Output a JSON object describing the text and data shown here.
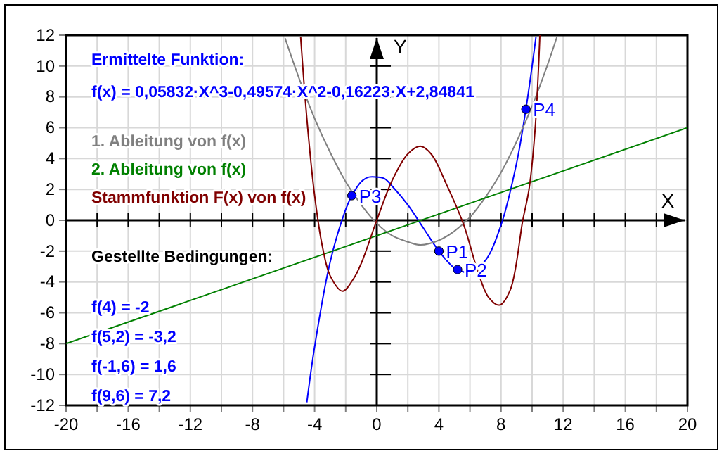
{
  "chart_data": {
    "type": "line",
    "legend_title": "Ermittelte Funktion:",
    "xlabel": "X",
    "ylabel": "Y",
    "xlim": [
      -20,
      20
    ],
    "ylim": [
      -12,
      12
    ],
    "xticks": [
      -20,
      {
        "value": -18,
        "label": null
      },
      -16,
      {
        "value": -14,
        "label": null
      },
      -12,
      {
        "value": -10,
        "label": null
      },
      -8,
      {
        "value": -6,
        "label": null
      },
      -4,
      {
        "value": -2,
        "label": null
      },
      0,
      {
        "value": 2,
        "label": null
      },
      4,
      {
        "value": 6,
        "label": null
      },
      8,
      {
        "value": 10,
        "label": null
      },
      12,
      {
        "value": 14,
        "label": null
      },
      16,
      {
        "value": 18,
        "label": null
      },
      20
    ],
    "yticks": [
      -12,
      -10,
      -8,
      -6,
      -4,
      -2,
      0,
      2,
      4,
      6,
      8,
      10,
      12
    ],
    "grid": true,
    "legend": "top left",
    "marker": "none",
    "line_style": "solid",
    "series": [
      {
        "name": "f(x) = 0,05832·X^3-0,49574·X^2-0,16223·X+2,84841",
        "color": "#0000ff",
        "x": [
          -4.5,
          -4,
          -3,
          -2,
          -1.6,
          -1,
          -0.5,
          0,
          0.5,
          1,
          2,
          3,
          4,
          5,
          5.2,
          6,
          7,
          8,
          9,
          9.6,
          10,
          10.25
        ],
        "values": [
          -11.8,
          -8.2,
          -2.7,
          0.7,
          1.6,
          2.5,
          2.8,
          2.8,
          2.7,
          2.2,
          1,
          -0.5,
          -2,
          -3.1,
          -3.2,
          -3.4,
          -2.6,
          -0.3,
          3.7,
          7.2,
          10,
          11.9
        ]
      },
      {
        "name": "1. Ableitung von f(x)",
        "color": "#808080",
        "x": [
          -5.9,
          -5,
          -4,
          -3,
          -2,
          -1,
          0,
          1,
          2,
          2.83,
          4,
          5,
          6,
          7,
          8,
          9,
          10,
          11,
          11.6
        ],
        "values": [
          11.8,
          9.2,
          6.6,
          4.4,
          2.5,
          1,
          -0.2,
          -1,
          -1.4,
          -1.6,
          -1.3,
          -0.7,
          0.2,
          1.5,
          3.1,
          5.1,
          7.4,
          10.1,
          11.9
        ]
      },
      {
        "name": "2. Ableitung von f(x)",
        "color": "#008000",
        "x": [
          -20,
          0,
          20
        ],
        "values": [
          -8,
          -1,
          6
        ]
      },
      {
        "name": "Stammfunktion F(x) von f(x)",
        "color": "#800000",
        "x": [
          -4.9,
          -4.5,
          -4,
          -3.5,
          -3,
          -2.2,
          -1.5,
          -1,
          0,
          1,
          2,
          2.8,
          3.5,
          4.5,
          5.6,
          6.5,
          7.2,
          7.9,
          8.6,
          9.4,
          9.8,
          10.2,
          10.5
        ],
        "values": [
          11.9,
          6.6,
          1.6,
          -1.7,
          -3.6,
          -4.6,
          -3.8,
          -2.8,
          0,
          2.6,
          4.3,
          4.8,
          4.3,
          2.3,
          -0.3,
          -3.3,
          -5,
          -5.5,
          -4.5,
          0,
          2,
          6,
          12
        ]
      },
      {
        "type": "scatter",
        "marker": "circle",
        "color": "#0000ff",
        "x": [
          4,
          5.2,
          -1.6,
          9.6
        ],
        "values": [
          -2,
          -3.2,
          1.6,
          7.2
        ]
      }
    ],
    "annotations": [
      "Gestellte Bedingungen:",
      "f(4) = -2",
      "f(5,2) = -3,2",
      "f(-1,6) = 1,6",
      "f(9,6) = 7,2",
      {
        "text": "P1",
        "x": 4,
        "y": -2
      },
      {
        "text": "P2",
        "x": 5.2,
        "y": -3.2
      },
      {
        "text": "P3",
        "x": -1.6,
        "y": 1.6
      },
      {
        "text": "P4",
        "x": 9.6,
        "y": 7.2
      }
    ]
  }
}
